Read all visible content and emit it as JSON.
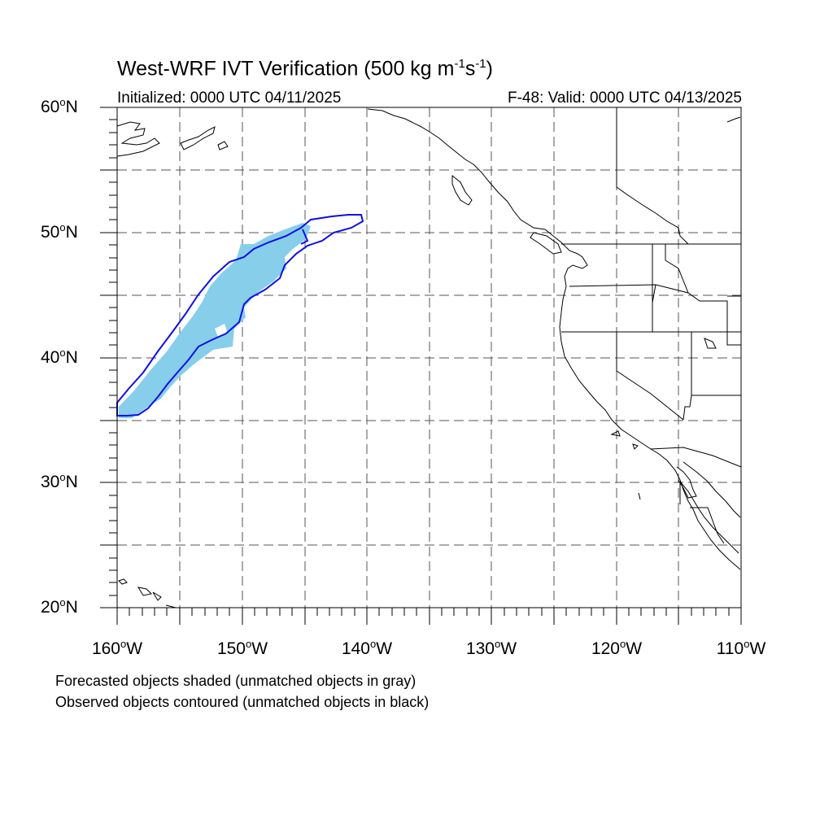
{
  "title": {
    "text": "West-WRF IVT Verification (500 kg m",
    "sup1": "-1",
    "mid": "s",
    "sup2": "-1",
    "end": ")"
  },
  "initialized": "Initialized: 0000 UTC 04/11/2025",
  "valid": "F-48: Valid: 0000 UTC 04/13/2025",
  "lat_labels": [
    {
      "value": "60",
      "suffix": "N"
    },
    {
      "value": "50",
      "suffix": "N"
    },
    {
      "value": "40",
      "suffix": "N"
    },
    {
      "value": "30",
      "suffix": "N"
    },
    {
      "value": "20",
      "suffix": "N"
    }
  ],
  "lon_labels": [
    {
      "value": "160",
      "suffix": "W"
    },
    {
      "value": "150",
      "suffix": "W"
    },
    {
      "value": "140",
      "suffix": "W"
    },
    {
      "value": "130",
      "suffix": "W"
    },
    {
      "value": "120",
      "suffix": "W"
    },
    {
      "value": "110",
      "suffix": "W"
    }
  ],
  "degree_symbol": "o",
  "notes": [
    "Forecasted objects shaded (unmatched objects in gray)",
    "Observed objects contoured (unmatched objects in black)"
  ],
  "colors": {
    "forecast_fill": "#87ceeb",
    "observed_contour": "#1010e0",
    "coast": "#000000",
    "grid": "#555555"
  },
  "map_extent": {
    "lon_min": -160,
    "lon_max": -110,
    "lat_min": 20,
    "lat_max": 60
  }
}
